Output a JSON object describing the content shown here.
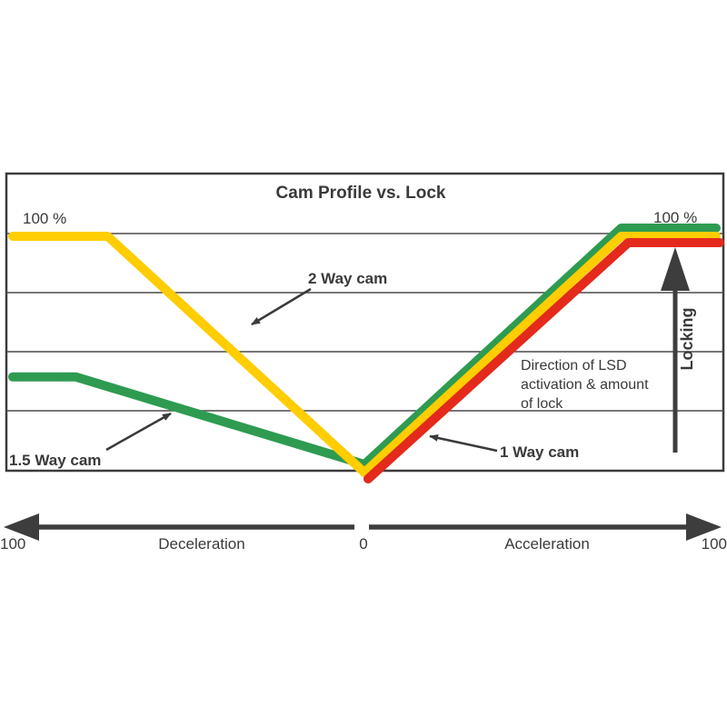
{
  "title": "Cam Profile vs. Lock",
  "labels": {
    "left_100": "100 %",
    "right_100": "100 %",
    "two_way": "2 Way cam",
    "one_five_way": "1.5 Way cam",
    "one_way": "1 Way cam",
    "direction_line1": "Direction of LSD",
    "direction_line2": "activation & amount",
    "direction_line3": "of lock",
    "locking": "Locking"
  },
  "axis": {
    "left_value": "100",
    "left_label": "Deceleration",
    "center_value": "0",
    "right_label": "Acceleration",
    "right_value": "100"
  },
  "colors": {
    "yellow": "#FFCD00",
    "green": "#2E9B51",
    "red": "#E32A1C",
    "dark": "#3D3D3D",
    "grid": "#4A4A4A"
  },
  "chart_data": {
    "type": "line",
    "title": "Cam Profile vs. Lock",
    "x_axis": {
      "left_label": "Deceleration",
      "right_label": "Acceleration",
      "range": [
        -100,
        100
      ],
      "tick_labels": [
        "100",
        "0",
        "100"
      ]
    },
    "y_axis": {
      "label": "Locking",
      "unit": "% lock",
      "range": [
        0,
        100
      ],
      "top_labels": [
        "100 %",
        "100 %"
      ]
    },
    "grid": "horizontal, 4 inner gridlines (20% bands)",
    "legend_position": "inline annotations with arrows",
    "annotations": [
      "2 Way cam",
      "1.5 Way cam",
      "1 Way cam",
      "Direction of LSD activation & amount of lock"
    ],
    "series": [
      {
        "name": "2 Way cam",
        "color": "#FFCD00",
        "points": [
          [
            -100,
            100
          ],
          [
            -73,
            100
          ],
          [
            0,
            0
          ],
          [
            73,
            100
          ],
          [
            100,
            100
          ]
        ]
      },
      {
        "name": "1.5 Way cam",
        "color": "#2E9B51",
        "points": [
          [
            -100,
            37
          ],
          [
            -82,
            37
          ],
          [
            0,
            0
          ],
          [
            73,
            100
          ],
          [
            100,
            100
          ]
        ]
      },
      {
        "name": "1 Way cam",
        "color": "#E32A1C",
        "points": [
          [
            0,
            0
          ],
          [
            74,
            100
          ],
          [
            100,
            100
          ]
        ]
      }
    ]
  }
}
